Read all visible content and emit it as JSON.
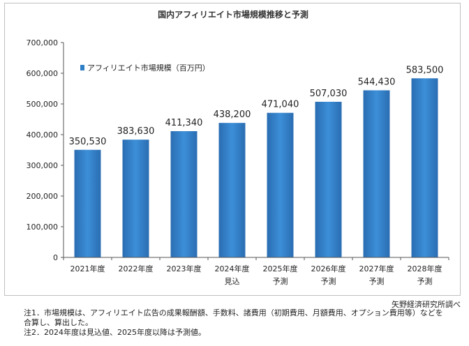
{
  "chart_data": {
    "type": "bar",
    "title": "国内アフィリエイト市場規模推移と予測",
    "legend": {
      "label": "アフィリエイト市場規模（百万円）",
      "placement": "top-left"
    },
    "categories": [
      "2021年度",
      "2022年度",
      "2023年度",
      "2024年度",
      "2025年度",
      "2026年度",
      "2027年度",
      "2028年度"
    ],
    "sublabels": [
      "",
      "",
      "",
      "見込",
      "予測",
      "予測",
      "予測",
      "予測"
    ],
    "values": [
      350530,
      383630,
      411340,
      438200,
      471040,
      507030,
      544430,
      583500
    ],
    "value_labels": [
      "350,530",
      "383,630",
      "411,340",
      "438,200",
      "471,040",
      "507,030",
      "544,430",
      "583,500"
    ],
    "yticks": [
      "0",
      "100,000",
      "200,000",
      "300,000",
      "400,000",
      "500,000",
      "600,000",
      "700,000"
    ],
    "ylim": [
      0,
      700000
    ],
    "grid": false,
    "bar_color": "#2f7fc7"
  },
  "source": "矢野経済研究所調べ",
  "notes": [
    "注1．市場規模は、アフィリエイト広告の成果報酬額、手数料、諸費用（初期費用、月額費用、オプション費用等）などを",
    "合算し、算出した。",
    "注2．2024年度は見込値、2025年度以降は予測値。"
  ]
}
